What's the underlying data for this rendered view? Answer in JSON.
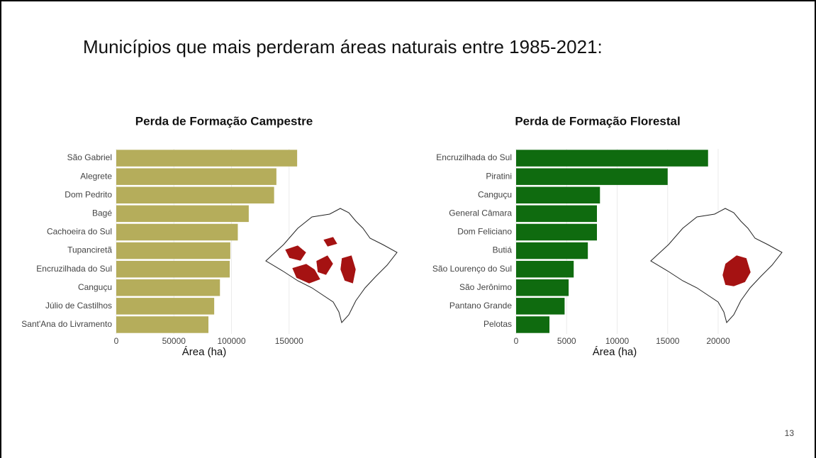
{
  "slide_title": "Municípios que mais perderam áreas naturais entre 1985-2021:",
  "page_number": "13",
  "chart_data": [
    {
      "type": "bar",
      "orientation": "horizontal",
      "title": "Perda de Formação Campestre",
      "x_label": "Área (ha)",
      "categories": [
        "São Gabriel",
        "Alegrete",
        "Dom Pedrito",
        "Bagé",
        "Cachoeira do Sul",
        "Tupanciretã",
        "Encruzilhada do Sul",
        "Canguçu",
        "Júlio de Castilhos",
        "Sant'Ana do Livramento"
      ],
      "values": [
        157000,
        139000,
        137000,
        115000,
        105500,
        99000,
        98500,
        90000,
        85000,
        80000
      ],
      "color": "#b5ad5b",
      "xlim": [
        0,
        160000
      ],
      "xticks": [
        0,
        50000,
        100000,
        150000
      ],
      "grid": true
    },
    {
      "type": "bar",
      "orientation": "horizontal",
      "title": "Perda de Formação Florestal",
      "x_label": "Área (ha)",
      "categories": [
        "Encruzilhada do Sul",
        "Piratini",
        "Canguçu",
        "General Câmara",
        "Dom Feliciano",
        "Butiá",
        "São Lourenço do Sul",
        "São Jerônimo",
        "Pantano Grande",
        "Pelotas"
      ],
      "values": [
        19000,
        15000,
        8300,
        8000,
        8000,
        7100,
        5700,
        5200,
        4800,
        3300
      ],
      "color": "#0f6b0f",
      "xlim": [
        0,
        20000
      ],
      "xticks": [
        0,
        5000,
        10000,
        15000,
        20000
      ],
      "grid": true
    }
  ]
}
